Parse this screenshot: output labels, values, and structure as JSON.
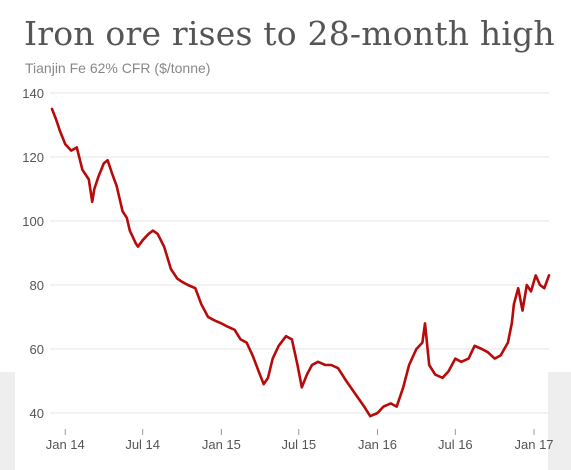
{
  "title": "Iron ore rises to 28-month high",
  "subtitle": "Tianjin Fe 62% CFR ($/tonne)",
  "colors": {
    "line": "#b80a0a",
    "grid": "#e3e3e3",
    "band": "#eeeeee"
  },
  "chart_data": {
    "type": "line",
    "title": "Iron ore rises to 28-month high",
    "subtitle": "Tianjin Fe 62% CFR ($/tonne)",
    "xlabel": "",
    "ylabel": "",
    "ylim": [
      35,
      140
    ],
    "xlim": [
      "2013-12-01",
      "2017-02-05"
    ],
    "grid": true,
    "y_ticks": [
      40,
      60,
      80,
      100,
      120,
      140
    ],
    "x_ticks": [
      {
        "label": "Jan 14",
        "date": "2014-01-01"
      },
      {
        "label": "Jul 14",
        "date": "2014-07-01"
      },
      {
        "label": "Jan 15",
        "date": "2015-01-01"
      },
      {
        "label": "Jul 15",
        "date": "2015-07-01"
      },
      {
        "label": "Jan 16",
        "date": "2016-01-01"
      },
      {
        "label": "Jul 16",
        "date": "2016-07-01"
      },
      {
        "label": "Jan 17",
        "date": "2017-01-01"
      }
    ],
    "series": [
      {
        "x": [
          "2013-12-01",
          "2013-12-10",
          "2013-12-20",
          "2014-01-01",
          "2014-01-15",
          "2014-01-28",
          "2014-02-10",
          "2014-02-25",
          "2014-03-05",
          "2014-03-10",
          "2014-03-20",
          "2014-04-01",
          "2014-04-10",
          "2014-04-20",
          "2014-05-01",
          "2014-05-15",
          "2014-05-25",
          "2014-06-01",
          "2014-06-15",
          "2014-06-20",
          "2014-07-01",
          "2014-07-15",
          "2014-07-25",
          "2014-08-05",
          "2014-08-20",
          "2014-09-05",
          "2014-09-20",
          "2014-10-01",
          "2014-10-15",
          "2014-11-01",
          "2014-11-15",
          "2014-12-01",
          "2014-12-15",
          "2015-01-01",
          "2015-01-15",
          "2015-02-01",
          "2015-02-15",
          "2015-03-01",
          "2015-03-15",
          "2015-04-01",
          "2015-04-10",
          "2015-04-20",
          "2015-05-01",
          "2015-05-15",
          "2015-06-01",
          "2015-06-15",
          "2015-06-28",
          "2015-07-08",
          "2015-07-20",
          "2015-08-01",
          "2015-08-15",
          "2015-09-01",
          "2015-09-15",
          "2015-10-01",
          "2015-10-20",
          "2015-11-10",
          "2015-12-01",
          "2015-12-15",
          "2016-01-01",
          "2016-01-15",
          "2016-02-01",
          "2016-02-15",
          "2016-03-01",
          "2016-03-15",
          "2016-04-01",
          "2016-04-15",
          "2016-04-21",
          "2016-05-01",
          "2016-05-15",
          "2016-06-01",
          "2016-06-15",
          "2016-07-01",
          "2016-07-15",
          "2016-08-01",
          "2016-08-15",
          "2016-09-01",
          "2016-09-15",
          "2016-10-01",
          "2016-10-15",
          "2016-11-01",
          "2016-11-10",
          "2016-11-15",
          "2016-11-25",
          "2016-12-05",
          "2016-12-15",
          "2016-12-25",
          "2017-01-05",
          "2017-01-15",
          "2017-01-25",
          "2017-02-05"
        ],
        "values": [
          135,
          132,
          128,
          124,
          122,
          123,
          116,
          113,
          106,
          110,
          114,
          118,
          119,
          115,
          111,
          103,
          101,
          97,
          93,
          92,
          94,
          96,
          97,
          96,
          92,
          85,
          82,
          81,
          80,
          79,
          74,
          70,
          69,
          68,
          67,
          66,
          63,
          62,
          58,
          52,
          49,
          51,
          57,
          61,
          64,
          63,
          55,
          48,
          52,
          55,
          56,
          55,
          55,
          54,
          50,
          46,
          42,
          39,
          40,
          42,
          43,
          42,
          48,
          55,
          60,
          62,
          68,
          55,
          52,
          51,
          53,
          57,
          56,
          57,
          61,
          60,
          59,
          57,
          58,
          62,
          68,
          74,
          79,
          72,
          80,
          78,
          83,
          80,
          79,
          83
        ]
      }
    ]
  }
}
